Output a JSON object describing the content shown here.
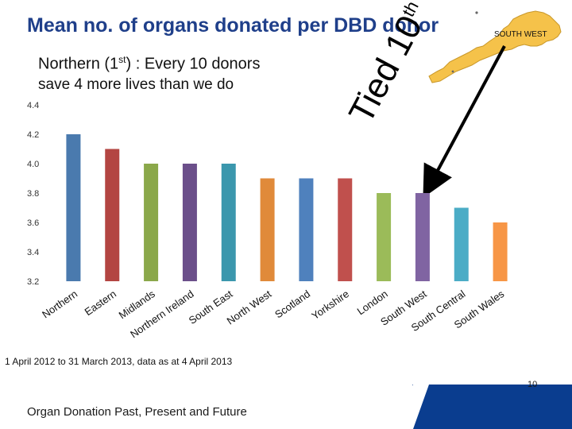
{
  "slide": {
    "title": "Mean no. of organs donated per DBD donor",
    "subtitle_main": "Northern (1",
    "subtitle_sup": "st",
    "subtitle_rest": ") : Every 10 donors",
    "subtitle_line2": "save 4 more lives than we do",
    "annotation_main": "Tied 10",
    "annotation_sup": "th",
    "region_label": "SOUTH WEST",
    "footnote": "1 April 2012 to 31 March 2013, data as at 4 April 2013",
    "footer_text": "Organ Donation Past, Present and Future",
    "page_number": "10",
    "colors": {
      "title": "#1f3f8a",
      "footer_band": "#0a3d8f",
      "map_fill": "#f5c24a",
      "arrow": "#000000"
    }
  },
  "chart_data": {
    "type": "bar",
    "categories": [
      "Northern",
      "Eastern",
      "Midlands",
      "Northern Ireland",
      "South East",
      "North West",
      "Scotland",
      "Yorkshire",
      "London",
      "South West",
      "South Central",
      "South Wales"
    ],
    "values": [
      4.2,
      4.1,
      4.0,
      4.0,
      4.0,
      3.9,
      3.9,
      3.9,
      3.8,
      3.8,
      3.7,
      3.6
    ],
    "colors": [
      "#4a7aae",
      "#b34542",
      "#8ba84a",
      "#6b4f8a",
      "#3b97ad",
      "#e08a3a",
      "#4f81bd",
      "#c0504d",
      "#9bbb59",
      "#8064a2",
      "#4bacc6",
      "#f79646"
    ],
    "ylim": [
      3.2,
      4.4
    ],
    "yticks": [
      "3.2",
      "3.4",
      "3.6",
      "3.8",
      "4.0",
      "4.2",
      "4.4"
    ],
    "title": "",
    "xlabel": "",
    "ylabel": "",
    "grid": false,
    "legend": "none"
  }
}
